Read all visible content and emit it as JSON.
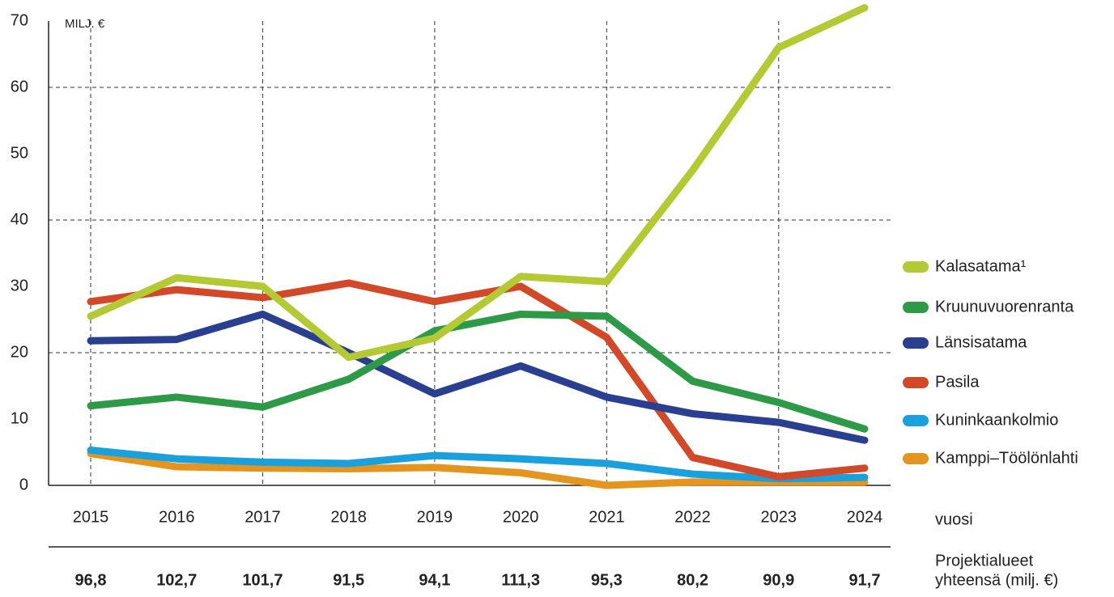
{
  "chart_data": {
    "type": "line",
    "y_unit": "MILJ. €",
    "x_label": "vuosi",
    "categories": [
      "2015",
      "2016",
      "2017",
      "2018",
      "2019",
      "2020",
      "2021",
      "2022",
      "2023",
      "2024"
    ],
    "ylim": [
      0,
      70
    ],
    "yticks": [
      0,
      10,
      20,
      30,
      40,
      50,
      60,
      70
    ],
    "grid_yticks": [
      20,
      40,
      60
    ],
    "series": [
      {
        "name": "Kalasatama¹",
        "color": "#b5c934",
        "values": [
          25.5,
          31.3,
          30,
          19.3,
          22.2,
          31.5,
          30.7,
          47.5,
          66,
          72
        ]
      },
      {
        "name": "Kruunuvuorenranta",
        "color": "#2e9a47",
        "values": [
          12,
          13.3,
          11.8,
          16,
          23.3,
          25.8,
          25.5,
          15.7,
          12.5,
          8.5
        ]
      },
      {
        "name": "Länsisatama",
        "color": "#2a3f8f",
        "values": [
          21.8,
          22,
          25.8,
          20,
          13.8,
          18,
          13.3,
          10.8,
          9.5,
          6.8
        ]
      },
      {
        "name": "Pasila",
        "color": "#d2492a",
        "values": [
          27.7,
          29.5,
          28.3,
          30.5,
          27.7,
          30,
          22.3,
          4.2,
          1.3,
          2.6
        ]
      },
      {
        "name": "Kuninkaankolmio",
        "color": "#1aa0dc",
        "values": [
          5.3,
          4,
          3.5,
          3.3,
          4.5,
          4,
          3.3,
          1.7,
          1,
          1.2
        ]
      },
      {
        "name": "Kamppi–Töölönlahti",
        "color": "#e39520",
        "values": [
          4.8,
          2.8,
          2.6,
          2.5,
          2.7,
          1.9,
          0,
          0.5,
          0.5,
          0.5
        ]
      }
    ],
    "totals_label": [
      "Projektialueet",
      "yhteensä (milj. €)"
    ],
    "totals": [
      "96,8",
      "102,7",
      "101,7",
      "91,5",
      "94,1",
      "111,3",
      "95,3",
      "80,2",
      "90,9",
      "91,7"
    ]
  }
}
